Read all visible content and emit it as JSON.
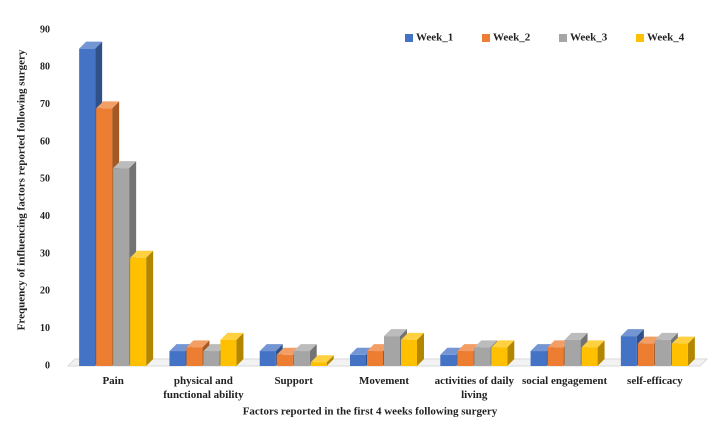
{
  "chart_data": {
    "type": "bar3d",
    "x_label": "Factors reported in the first 4 weeks following surgery",
    "y_label": "Frequency of influencing factors reported following surgery",
    "categories": [
      "Pain",
      "physical and functional ability",
      "Support",
      "Movement",
      "activities of daily living",
      "social engagement",
      "self-efficacy"
    ],
    "series": [
      {
        "name": "Week_1",
        "color": "#4472c4",
        "values": [
          85,
          4,
          4,
          3,
          3,
          4,
          8
        ]
      },
      {
        "name": "Week_2",
        "color": "#ed7d31",
        "values": [
          69,
          5,
          3,
          4,
          4,
          5,
          6
        ]
      },
      {
        "name": "Week_3",
        "color": "#a5a5a5",
        "values": [
          53,
          4,
          4,
          8,
          5,
          7,
          7
        ]
      },
      {
        "name": "Week_4",
        "color": "#ffc000",
        "values": [
          29,
          7,
          1,
          7,
          5,
          5,
          6
        ]
      }
    ],
    "ylim": [
      0,
      90
    ],
    "yticks": [
      0,
      10,
      20,
      30,
      40,
      50,
      60,
      70,
      80,
      90
    ],
    "grid": false,
    "legend": "top-right"
  }
}
